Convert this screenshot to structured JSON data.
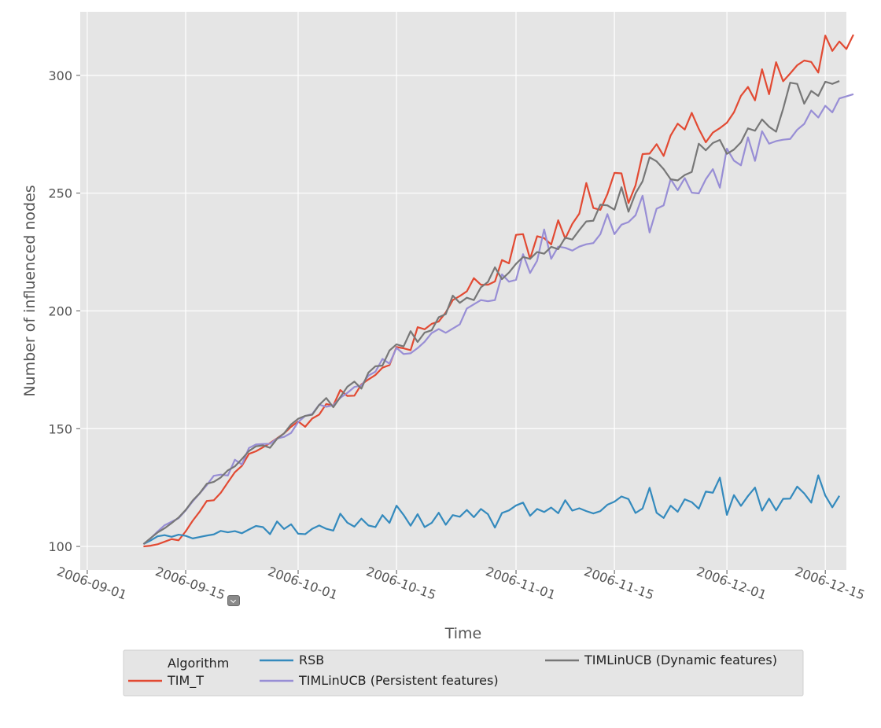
{
  "chart_data": {
    "type": "line",
    "title": "",
    "xlabel": "Time",
    "ylabel": "Number of influenced nodes",
    "x_start": "2006-09-09",
    "x_step_days": 1,
    "xlim": [
      "2006-08-31",
      "2006-12-18"
    ],
    "ylim": [
      90,
      327
    ],
    "x_ticks": [
      "2006-09-01",
      "2006-09-15",
      "2006-10-01",
      "2006-10-15",
      "2006-11-01",
      "2006-11-15",
      "2006-12-01",
      "2006-12-15"
    ],
    "y_ticks": [
      100,
      150,
      200,
      250,
      300
    ],
    "grid": true,
    "legend": {
      "title": "Algorithm",
      "placement": "below",
      "entries": [
        "TIM_T",
        "RSB",
        "TIMLinUCB (Persistent features)",
        "TIMLinUCB (Dynamic features)"
      ]
    },
    "series": [
      {
        "name": "TIM_T",
        "color": "#E24A33",
        "values": [
          100,
          100.3,
          100.9,
          102.0,
          103.1,
          102.6,
          106.4,
          110.9,
          114.8,
          119.3,
          119.6,
          122.8,
          127.2,
          131.5,
          134.2,
          139.3,
          140.4,
          142.1,
          143.9,
          145.9,
          148.0,
          150.8,
          153.1,
          150.8,
          154.3,
          156.0,
          160.5,
          159.8,
          166.4,
          163.9,
          164.0,
          168.8,
          170.9,
          172.8,
          175.9,
          177.0,
          184.7,
          184.1,
          183.3,
          193.1,
          192.2,
          194.5,
          195.5,
          199.3,
          204.6,
          206.3,
          208.3,
          213.9,
          211.1,
          211.1,
          212.5,
          221.6,
          220.2,
          232.3,
          232.6,
          222.1,
          231.7,
          230.9,
          228.2,
          238.5,
          230.7,
          236.9,
          241.3,
          254.3,
          243.7,
          242.9,
          249.6,
          258.6,
          258.4,
          245.8,
          253.3,
          266.6,
          266.8,
          270.8,
          265.8,
          274.5,
          279.5,
          277.0,
          284.1,
          277.3,
          271.6,
          275.7,
          277.6,
          279.9,
          284.3,
          291.3,
          295.1,
          289.4,
          302.6,
          292.0,
          305.6,
          297.5,
          300.8,
          304.3,
          306.3,
          305.7,
          301.2,
          316.9,
          310.4,
          314.4,
          311.2,
          317.3
        ]
      },
      {
        "name": "RSB",
        "color": "#348ABD",
        "values": [
          101,
          102.5,
          104.3,
          104.8,
          104.1,
          105.0,
          104.5,
          103.4,
          104.0,
          104.6,
          105.1,
          106.6,
          106.0,
          106.5,
          105.6,
          107.2,
          108.7,
          108.2,
          105.2,
          110.6,
          107.4,
          109.4,
          105.4,
          105.2,
          107.5,
          108.9,
          107.5,
          106.7,
          113.9,
          110.1,
          108.4,
          111.8,
          108.9,
          108.2,
          113.3,
          110.0,
          117.3,
          113.4,
          108.8,
          113.7,
          108.2,
          110.0,
          114.3,
          109.2,
          113.3,
          112.6,
          115.5,
          112.4,
          115.9,
          113.7,
          108.0,
          114.2,
          115.3,
          117.4,
          118.6,
          113.0,
          115.9,
          114.6,
          116.5,
          114.1,
          119.6,
          115.2,
          116.2,
          115.0,
          114.0,
          115.0,
          117.7,
          119.0,
          121.2,
          120.1,
          114.2,
          116.1,
          124.9,
          114.3,
          112.1,
          117.3,
          114.7,
          120.0,
          118.8,
          116.0,
          123.3,
          122.8,
          129.2,
          113.4,
          121.8,
          117.2,
          121.4,
          125.0,
          115.2,
          120.3,
          115.3,
          120.2,
          120.3,
          125.4,
          122.5,
          118.6,
          130.2,
          121.6,
          116.6,
          121.5
        ]
      },
      {
        "name": "TIMLinUCB (Persistent features)",
        "color": "#988ED5",
        "values": [
          101,
          103.4,
          106.3,
          109.0,
          110.5,
          112.0,
          115.3,
          119.1,
          122.5,
          126.0,
          130.0,
          130.5,
          130.1,
          136.8,
          134.8,
          141.8,
          143.3,
          143.5,
          143.6,
          145.8,
          146.5,
          148.2,
          152.8,
          155.4,
          156.2,
          160.2,
          159.3,
          159.9,
          163.1,
          165.2,
          167.7,
          168.3,
          172.5,
          174.2,
          179.6,
          177.6,
          184.3,
          181.7,
          182.0,
          184.2,
          186.9,
          190.6,
          192.3,
          190.7,
          192.5,
          194.3,
          201.0,
          202.8,
          204.6,
          204.1,
          204.6,
          215.5,
          212.4,
          213.2,
          224.1,
          216.1,
          221.3,
          234.6,
          222.1,
          227.3,
          226.8,
          225.6,
          227.3,
          228.3,
          228.8,
          232.6,
          241.1,
          232.6,
          236.6,
          237.7,
          240.6,
          248.9,
          233.3,
          243.4,
          244.8,
          256.0,
          251.3,
          256.4,
          250.2,
          249.9,
          255.9,
          260.2,
          252.3,
          268.9,
          263.8,
          261.8,
          273.7,
          263.7,
          276.3,
          271.0,
          272.1,
          272.7,
          273.0,
          276.9,
          279.4,
          285.1,
          282.1,
          287.1,
          284.3,
          290.2,
          291.1,
          292.0
        ]
      },
      {
        "name": "TIMLinUCB (Dynamic features)",
        "color": "#777777",
        "values": [
          101,
          103.5,
          105.9,
          107.7,
          109.9,
          112.3,
          115.5,
          119.5,
          122.6,
          126.6,
          127.4,
          129.3,
          132.3,
          134.0,
          137.1,
          140.5,
          142.5,
          142.9,
          141.9,
          145.7,
          148.0,
          151.8,
          154.2,
          155.4,
          155.9,
          160.1,
          163.0,
          159.1,
          163.4,
          167.8,
          170.0,
          167.0,
          173.8,
          176.5,
          176.8,
          183.2,
          185.8,
          184.9,
          191.4,
          186.8,
          190.8,
          191.8,
          197.3,
          198.6,
          206.5,
          203.4,
          205.6,
          204.6,
          210.0,
          212.3,
          218.5,
          213.5,
          216.3,
          220.0,
          222.9,
          222.1,
          225.0,
          224.3,
          227.2,
          226.2,
          231.1,
          230.3,
          234.3,
          238.0,
          238.3,
          245.1,
          244.8,
          243.0,
          252.5,
          242.1,
          249.9,
          255.0,
          265.2,
          263.5,
          260.2,
          255.9,
          255.4,
          257.7,
          259.0,
          271.0,
          268.2,
          271.3,
          272.6,
          266.7,
          268.5,
          271.6,
          277.5,
          276.5,
          281.3,
          278.2,
          276.1,
          285.8,
          296.9,
          296.4,
          288.0,
          293.4,
          291.3,
          297.3,
          296.4,
          297.6
        ]
      }
    ]
  }
}
